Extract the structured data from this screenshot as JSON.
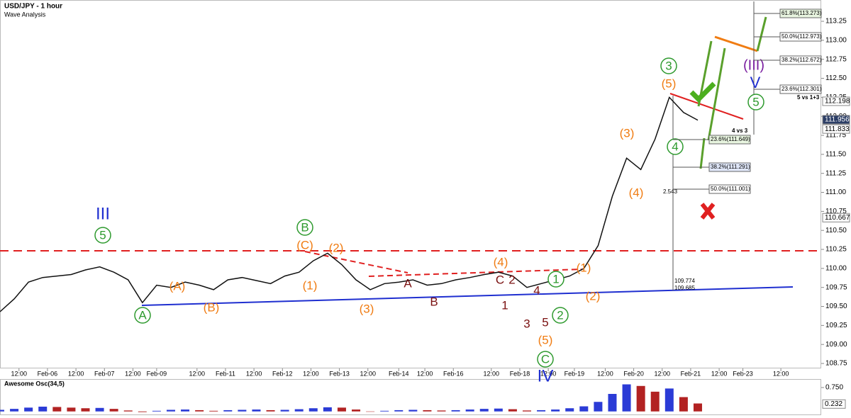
{
  "header": {
    "title": "USD/JPY - 1 hour",
    "subtitle": "Wave Analysis"
  },
  "chart_data": [
    {
      "type": "line",
      "color": "#111111",
      "x": [
        0,
        6,
        12,
        18,
        24,
        30,
        36,
        42,
        48,
        54,
        60,
        66,
        72,
        78,
        84,
        90,
        96,
        102,
        108,
        114,
        120,
        126,
        132,
        138,
        144,
        150,
        156,
        162,
        168,
        174,
        180,
        186,
        192,
        198,
        204,
        210,
        216,
        222,
        228,
        234,
        240,
        246,
        252,
        258,
        264,
        270,
        276,
        282,
        288,
        294
      ],
      "series": [
        {
          "values": [
            109.43,
            109.6,
            109.82,
            109.88,
            109.9,
            109.92,
            109.98,
            110.02,
            109.95,
            109.85,
            109.55,
            109.78,
            109.75,
            109.82,
            109.78,
            109.72,
            109.85,
            109.88,
            109.84,
            109.8,
            109.9,
            109.95,
            110.1,
            110.2,
            110.05,
            109.85,
            109.72,
            109.8,
            109.82,
            109.85,
            109.78,
            109.8,
            109.85,
            109.88,
            109.92,
            109.95,
            109.9,
            109.75,
            109.8,
            109.85,
            109.9,
            110.0,
            110.3,
            110.95,
            111.45,
            111.3,
            111.7,
            112.25,
            112.05,
            111.95
          ]
        }
      ],
      "xlim": [
        0,
        346
      ],
      "ylim": [
        108.685,
        113.53
      ],
      "xticks": [
        {
          "value": 8,
          "label": "12:00"
        },
        {
          "value": 20,
          "label": "Feb-06"
        },
        {
          "value": 32,
          "label": "12:00"
        },
        {
          "value": 44,
          "label": "Feb-07"
        },
        {
          "value": 56,
          "label": "12:00"
        },
        {
          "value": 66,
          "label": "Feb-09"
        },
        {
          "value": 83,
          "label": "12:00"
        },
        {
          "value": 95,
          "label": "Feb-11"
        },
        {
          "value": 107,
          "label": "12:00"
        },
        {
          "value": 119,
          "label": "Feb-12"
        },
        {
          "value": 131,
          "label": "12:00"
        },
        {
          "value": 143,
          "label": "Feb-13"
        },
        {
          "value": 155,
          "label": "12:00"
        },
        {
          "value": 168,
          "label": "Feb-14"
        },
        {
          "value": 179,
          "label": "12:00"
        },
        {
          "value": 191,
          "label": "Feb-16"
        },
        {
          "value": 207,
          "label": "12:00"
        },
        {
          "value": 219,
          "label": "Feb-18"
        },
        {
          "value": 231,
          "label": "12:00"
        },
        {
          "value": 242,
          "label": "Feb-19"
        },
        {
          "value": 255,
          "label": "12:00"
        },
        {
          "value": 267,
          "label": "Feb-20"
        },
        {
          "value": 279,
          "label": "12:00"
        },
        {
          "value": 291,
          "label": "Feb-21"
        },
        {
          "value": 303,
          "label": "12:00"
        },
        {
          "value": 313,
          "label": "Feb-23"
        },
        {
          "value": 329,
          "label": "12:00"
        }
      ],
      "yticks": [
        113.25,
        {
          "value": 113,
          "label": "113.00"
        },
        112.75,
        {
          "value": 112.5,
          "label": "112.50"
        },
        112.25,
        {
          "value": 112,
          "label": "112.00"
        },
        111.75,
        {
          "value": 111.5,
          "label": "111.50"
        },
        111.25,
        {
          "value": 111,
          "label": "111.00"
        },
        110.75,
        {
          "value": 110.5,
          "label": "110.50"
        },
        110.25,
        {
          "value": 110,
          "label": "110.00"
        },
        109.75,
        {
          "value": 109.5,
          "label": "109.50"
        },
        109.25,
        {
          "value": 109,
          "label": "109.00"
        },
        108.75
      ],
      "price_tags": [
        112.198,
        111.956,
        111.833,
        110.667
      ],
      "annotations": [
        "III",
        "5",
        "(A)",
        "A",
        "(B)",
        "(C)",
        "B",
        "(1)",
        "(2)",
        "(3)",
        "A",
        "B",
        "(4)",
        "C",
        "2",
        "4",
        "1",
        "3",
        "5",
        "1",
        "2",
        "(5)",
        "C",
        "IV",
        "(1)",
        "(2)",
        "(3)",
        "(4)",
        "3",
        "(5)",
        "4",
        "(III)",
        "V",
        "5"
      ],
      "fib_levels": [
        "61.8%(113.273)",
        "50.0%(112.973)",
        "38.2%(112.672)",
        "23.6%(112.301)",
        "23.6%(111.649)",
        "38.2%(111.291)",
        "50.0%(111.001)"
      ],
      "notes": [
        "5 vs 1+3",
        "4 vs 3",
        "2.543",
        "109.774",
        "109.685"
      ]
    },
    {
      "type": "bar",
      "title": "Awesome Osc(34,5)",
      "up_color": "#2b3bd6",
      "down_color": "#b22222",
      "x": [
        0,
        6,
        12,
        18,
        24,
        30,
        36,
        42,
        48,
        54,
        60,
        66,
        72,
        78,
        84,
        90,
        96,
        102,
        108,
        114,
        120,
        126,
        132,
        138,
        144,
        150,
        156,
        162,
        168,
        174,
        180,
        186,
        192,
        198,
        204,
        210,
        216,
        222,
        228,
        234,
        240,
        246,
        252,
        258,
        264,
        270,
        276,
        282,
        288,
        294
      ],
      "values": [
        0.05,
        0.08,
        0.12,
        0.15,
        0.14,
        0.12,
        0.1,
        0.11,
        0.08,
        0.03,
        -0.02,
        0.02,
        0.05,
        0.06,
        0.04,
        0.02,
        0.04,
        0.05,
        0.06,
        0.04,
        0.05,
        0.07,
        0.1,
        0.13,
        0.12,
        0.06,
        0.0,
        0.02,
        0.04,
        0.05,
        0.04,
        0.03,
        0.04,
        0.06,
        0.08,
        0.09,
        0.07,
        0.03,
        0.04,
        0.06,
        0.1,
        0.16,
        0.3,
        0.55,
        0.85,
        0.8,
        0.62,
        0.72,
        0.45,
        0.25
      ],
      "xlim": [
        0,
        346
      ],
      "ylim": [
        -0.095,
        0.995
      ],
      "yticks": [
        {
          "value": 0.75,
          "label": "0.750"
        }
      ],
      "current_value": 0.232
    }
  ]
}
